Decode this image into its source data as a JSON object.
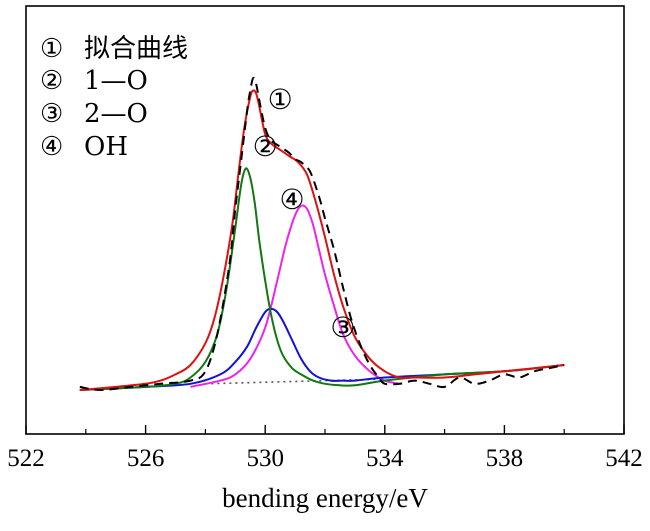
{
  "chart_data": {
    "type": "line",
    "title": "",
    "xlabel": "bending energy/eV",
    "ylabel": "",
    "xlim": [
      522,
      542
    ],
    "ylim": [
      0,
      1.1
    ],
    "xticks": [
      522,
      526,
      530,
      534,
      538,
      542
    ],
    "x_tick_labels": [
      "522",
      "526",
      "530",
      "534",
      "538",
      "542"
    ],
    "grid": false,
    "legend": {
      "placement": "top-left",
      "entries": [
        {
          "marker": "①",
          "label": "拟合曲线"
        },
        {
          "marker": "②",
          "label": "1—O"
        },
        {
          "marker": "③",
          "label": "2—O"
        },
        {
          "marker": "④",
          "label": "OH"
        }
      ]
    },
    "annotations": [
      {
        "text": "①",
        "x": 530.5,
        "y": 0.9
      },
      {
        "text": "②",
        "x": 530.0,
        "y": 0.75
      },
      {
        "text": "④",
        "x": 530.9,
        "y": 0.58
      },
      {
        "text": "③",
        "x": 532.6,
        "y": 0.17
      }
    ],
    "series": [
      {
        "color": "#000000",
        "style": "dashed",
        "x": [
          523.8,
          524.5,
          525.5,
          526.5,
          527.5,
          528.0,
          528.4,
          528.8,
          529.0,
          529.2,
          529.4,
          529.5,
          529.6,
          529.7,
          529.8,
          530.0,
          530.2,
          530.5,
          530.8,
          531.0,
          531.2,
          531.5,
          531.8,
          532.0,
          532.3,
          532.6,
          532.9,
          533.2,
          533.5,
          533.8,
          534.0,
          534.5,
          535.0,
          535.5,
          536.0,
          536.5,
          537.0,
          537.5,
          538.0,
          538.5,
          539.0,
          539.5,
          540.0
        ],
        "y": [
          0.01,
          0.0,
          0.01,
          0.02,
          0.03,
          0.06,
          0.18,
          0.4,
          0.58,
          0.74,
          0.9,
          0.96,
          1.0,
          0.98,
          0.93,
          0.84,
          0.8,
          0.78,
          0.76,
          0.74,
          0.73,
          0.7,
          0.62,
          0.55,
          0.45,
          0.33,
          0.22,
          0.14,
          0.08,
          0.04,
          0.02,
          0.02,
          0.03,
          0.02,
          0.01,
          0.04,
          0.02,
          0.03,
          0.05,
          0.04,
          0.06,
          0.07,
          0.08
        ]
      },
      {
        "color": "#dd1111",
        "style": "solid",
        "x": [
          523.8,
          525.0,
          526.0,
          526.5,
          527.0,
          527.5,
          528.0,
          528.3,
          528.6,
          528.9,
          529.1,
          529.3,
          529.5,
          529.6,
          529.7,
          529.8,
          530.0,
          530.2,
          530.5,
          530.8,
          531.1,
          531.4,
          531.7,
          532.0,
          532.3,
          532.6,
          533.0,
          533.5,
          534.0,
          534.5,
          535.0,
          536.0,
          537.0,
          538.0,
          539.0,
          540.0
        ],
        "y": [
          0.0,
          0.01,
          0.02,
          0.03,
          0.05,
          0.08,
          0.15,
          0.23,
          0.36,
          0.53,
          0.69,
          0.84,
          0.94,
          0.96,
          0.95,
          0.91,
          0.82,
          0.79,
          0.77,
          0.75,
          0.73,
          0.69,
          0.6,
          0.49,
          0.37,
          0.27,
          0.17,
          0.1,
          0.06,
          0.04,
          0.04,
          0.04,
          0.05,
          0.06,
          0.07,
          0.08
        ]
      },
      {
        "color": "#117711",
        "style": "solid",
        "x": [
          523.8,
          526.0,
          527.0,
          527.5,
          528.0,
          528.4,
          528.7,
          529.0,
          529.2,
          529.35,
          529.5,
          529.65,
          529.8,
          530.0,
          530.2,
          530.4,
          530.6,
          530.9,
          531.2,
          531.6,
          532.0,
          532.5,
          533.0,
          534.0,
          536.0,
          538.0,
          540.0
        ],
        "y": [
          0.0,
          0.01,
          0.02,
          0.04,
          0.09,
          0.18,
          0.32,
          0.52,
          0.66,
          0.71,
          0.68,
          0.6,
          0.48,
          0.35,
          0.24,
          0.16,
          0.11,
          0.07,
          0.05,
          0.03,
          0.02,
          0.015,
          0.015,
          0.03,
          0.05,
          0.06,
          0.08
        ]
      },
      {
        "color": "#1111dd",
        "style": "solid",
        "x": [
          523.8,
          526.0,
          527.5,
          528.5,
          529.0,
          529.4,
          529.7,
          530.0,
          530.2,
          530.4,
          530.6,
          530.9,
          531.2,
          531.5,
          531.8,
          532.2,
          532.6,
          533.0,
          534.0,
          536.0,
          538.0,
          540.0
        ],
        "y": [
          0.0,
          0.01,
          0.02,
          0.05,
          0.09,
          0.14,
          0.2,
          0.25,
          0.26,
          0.25,
          0.22,
          0.16,
          0.1,
          0.06,
          0.04,
          0.03,
          0.03,
          0.03,
          0.04,
          0.05,
          0.06,
          0.08
        ]
      },
      {
        "color": "#ee22ee",
        "style": "solid",
        "x": [
          527.5,
          528.5,
          529.0,
          529.5,
          530.0,
          530.4,
          530.7,
          531.0,
          531.2,
          531.4,
          531.6,
          531.8,
          532.0,
          532.3,
          532.6,
          533.0,
          533.5,
          534.0,
          534.5
        ],
        "y": [
          0.01,
          0.03,
          0.05,
          0.1,
          0.2,
          0.35,
          0.47,
          0.56,
          0.59,
          0.58,
          0.53,
          0.45,
          0.37,
          0.27,
          0.18,
          0.11,
          0.06,
          0.03,
          0.02
        ]
      },
      {
        "color": "#555555",
        "style": "dotted",
        "x": [
          528.0,
          534.0
        ],
        "y": [
          0.02,
          0.035
        ]
      }
    ]
  }
}
